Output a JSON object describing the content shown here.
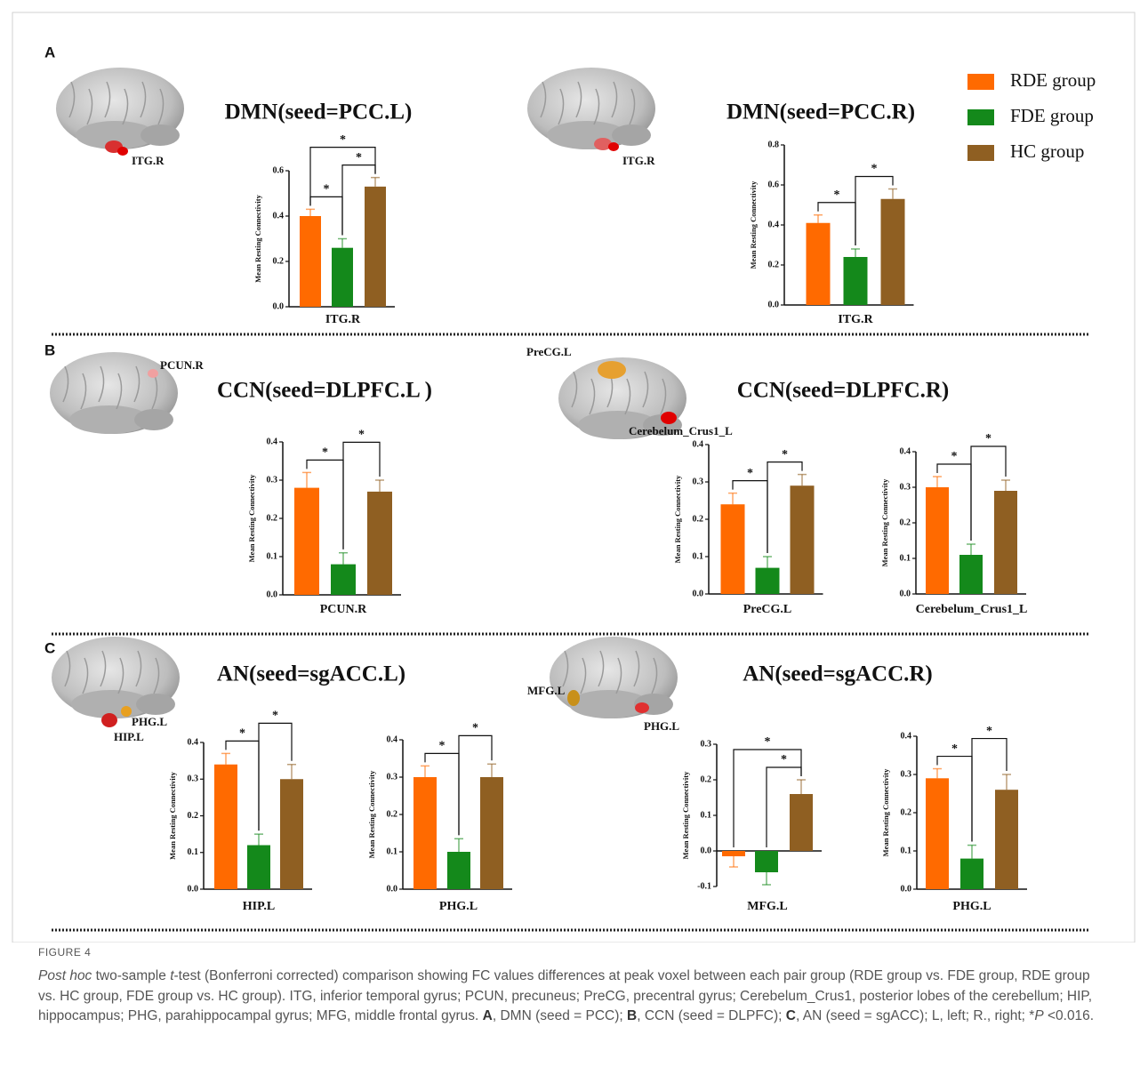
{
  "legend": {
    "series": [
      {
        "name": "RDE group",
        "color": "#ff6a00"
      },
      {
        "name": "FDE group",
        "color": "#14891b"
      },
      {
        "name": "HC group",
        "color": "#8f5f22"
      }
    ]
  },
  "panels": [
    {
      "letter": "A",
      "brain_labels": [
        "ITG.R",
        "ITG.R"
      ]
    },
    {
      "letter": "B",
      "brain_labels": [
        "PCUN.R",
        "PreCG.L",
        "Cerebelum_Crus1_L"
      ]
    },
    {
      "letter": "C",
      "brain_labels": [
        "PHG.L",
        "HIP.L",
        "MFG.L",
        "PHG.L"
      ]
    }
  ],
  "chart_data": [
    {
      "type": "bar",
      "title": "DMN(seed=PCC.L)",
      "ylabel": "Mean Resting Connectivity",
      "xlabel": "ITG.R",
      "values": [
        0.4,
        0.26,
        0.53
      ],
      "errors": [
        0.03,
        0.04,
        0.04
      ],
      "ylim": [
        0,
        0.6
      ],
      "yticks": [
        {
          "value": 0,
          "label": "0.0"
        },
        0.2,
        0.4,
        0.6
      ],
      "significance": [
        {
          "between": [
            0,
            1
          ],
          "label": "*"
        },
        {
          "between": [
            1,
            2
          ],
          "label": "*"
        },
        {
          "between": [
            0,
            2
          ],
          "label": "*"
        }
      ]
    },
    {
      "type": "bar",
      "title": "DMN(seed=PCC.R)",
      "ylabel": "Mean Resting Connectivity",
      "xlabel": "ITG.R",
      "values": [
        0.41,
        0.24,
        0.53
      ],
      "errors": [
        0.04,
        0.04,
        0.05
      ],
      "ylim": [
        0,
        0.8
      ],
      "yticks": [
        {
          "value": 0,
          "label": "0.0"
        },
        0.2,
        0.4,
        0.6,
        0.8
      ],
      "significance": [
        {
          "between": [
            0,
            1
          ],
          "label": "*"
        },
        {
          "between": [
            1,
            2
          ],
          "label": "*"
        }
      ]
    },
    {
      "type": "bar",
      "title": "CCN(seed=DLPFC.L )",
      "ylabel": "Mean Resting Connectivity",
      "xlabel": "PCUN.R",
      "values": [
        0.28,
        0.08,
        0.27
      ],
      "errors": [
        0.04,
        0.03,
        0.03
      ],
      "ylim": [
        0,
        0.4
      ],
      "yticks": [
        {
          "value": 0,
          "label": "0.0"
        },
        0.1,
        0.2,
        0.3,
        0.4
      ],
      "significance": [
        {
          "between": [
            0,
            1
          ],
          "label": "*"
        },
        {
          "between": [
            1,
            2
          ],
          "label": "*"
        }
      ]
    },
    {
      "type": "bar",
      "title": "CCN(seed=DLPFC.R)",
      "ylabel": "Mean Resting Connectivity",
      "xlabel": "PreCG.L",
      "values": [
        0.24,
        0.07,
        0.29
      ],
      "errors": [
        0.03,
        0.03,
        0.03
      ],
      "ylim": [
        0,
        0.4
      ],
      "yticks": [
        {
          "value": 0,
          "label": "0.0"
        },
        0.1,
        0.2,
        0.3,
        0.4
      ],
      "significance": [
        {
          "between": [
            0,
            1
          ],
          "label": "*"
        },
        {
          "between": [
            1,
            2
          ],
          "label": "*"
        }
      ]
    },
    {
      "type": "bar",
      "ylabel": "Mean Resting Connectivity",
      "xlabel": "Cerebelum_Crus1_L",
      "values": [
        0.3,
        0.11,
        0.29
      ],
      "errors": [
        0.03,
        0.03,
        0.03
      ],
      "ylim": [
        0,
        0.4
      ],
      "yticks": [
        {
          "value": 0,
          "label": "0.0"
        },
        0.1,
        0.2,
        0.3,
        0.4
      ],
      "significance": [
        {
          "between": [
            0,
            1
          ],
          "label": "*"
        },
        {
          "between": [
            1,
            2
          ],
          "label": "*"
        }
      ]
    },
    {
      "type": "bar",
      "title": "AN(seed=sgACC.L)",
      "ylabel": "Mean Resting Connectivity",
      "xlabel": "HIP.L",
      "values": [
        0.34,
        0.12,
        0.3
      ],
      "errors": [
        0.03,
        0.03,
        0.04
      ],
      "ylim": [
        0,
        0.4
      ],
      "yticks": [
        {
          "value": 0,
          "label": "0.0"
        },
        0.1,
        0.2,
        0.3,
        0.4
      ],
      "significance": [
        {
          "between": [
            0,
            1
          ],
          "label": "*"
        },
        {
          "between": [
            1,
            2
          ],
          "label": "*"
        }
      ]
    },
    {
      "type": "bar",
      "ylabel": "Mean Resting Connectivity",
      "xlabel": "PHG.L",
      "values": [
        0.3,
        0.1,
        0.3
      ],
      "errors": [
        0.03,
        0.035,
        0.035
      ],
      "ylim": [
        0,
        0.4
      ],
      "yticks": [
        {
          "value": 0,
          "label": "0.0"
        },
        0.1,
        0.2,
        0.3,
        0.4
      ],
      "significance": [
        {
          "between": [
            0,
            1
          ],
          "label": "*"
        },
        {
          "between": [
            1,
            2
          ],
          "label": "*"
        }
      ]
    },
    {
      "type": "bar",
      "title": "AN(seed=sgACC.R)",
      "ylabel": "Mean Resting Connectivity",
      "xlabel": "MFG.L",
      "values": [
        -0.015,
        -0.06,
        0.16
      ],
      "errors": [
        0.03,
        0.035,
        0.04
      ],
      "ylim": [
        -0.1,
        0.3
      ],
      "yticks": [
        -0.1,
        {
          "value": 0,
          "label": "0.0"
        },
        0.1,
        0.2,
        0.3
      ],
      "significance": [
        {
          "between": [
            1,
            2
          ],
          "label": "*"
        },
        {
          "between": [
            0,
            2
          ],
          "label": "*"
        }
      ]
    },
    {
      "type": "bar",
      "ylabel": "Mean Resting Connectivity",
      "xlabel": "PHG.L",
      "values": [
        0.29,
        0.08,
        0.26
      ],
      "errors": [
        0.025,
        0.035,
        0.04
      ],
      "ylim": [
        0,
        0.4
      ],
      "yticks": [
        {
          "value": 0,
          "label": "0.0"
        },
        0.1,
        0.2,
        0.3,
        0.4
      ],
      "significance": [
        {
          "between": [
            0,
            1
          ],
          "label": "*"
        },
        {
          "between": [
            1,
            2
          ],
          "label": "*"
        }
      ]
    }
  ],
  "caption": {
    "label": "FIGURE 4",
    "runs": [
      {
        "text": "Post hoc",
        "style": "italic"
      },
      {
        "text": " two-sample "
      },
      {
        "text": "t",
        "style": "italic"
      },
      {
        "text": "-test (Bonferroni corrected) comparison showing FC values differences at peak voxel between each pair group (RDE group vs. FDE group, RDE group vs. HC group, FDE group vs. HC group). ITG, inferior temporal gyrus; PCUN, precuneus; PreCG, precentral gyrus; Cerebelum_Crus1, posterior lobes of the cerebellum; HIP, hippocampus; PHG, parahippocampal gyrus; MFG, middle frontal gyrus. "
      },
      {
        "text": "A",
        "style": "bold"
      },
      {
        "text": ", DMN (seed = PCC); "
      },
      {
        "text": "B",
        "style": "bold"
      },
      {
        "text": ", CCN (seed = DLPFC); "
      },
      {
        "text": "C",
        "style": "bold"
      },
      {
        "text": ", AN (seed = sgACC); L, left; R., right; *"
      },
      {
        "text": "P",
        "style": "italic"
      },
      {
        "text": " <0.016."
      }
    ]
  }
}
